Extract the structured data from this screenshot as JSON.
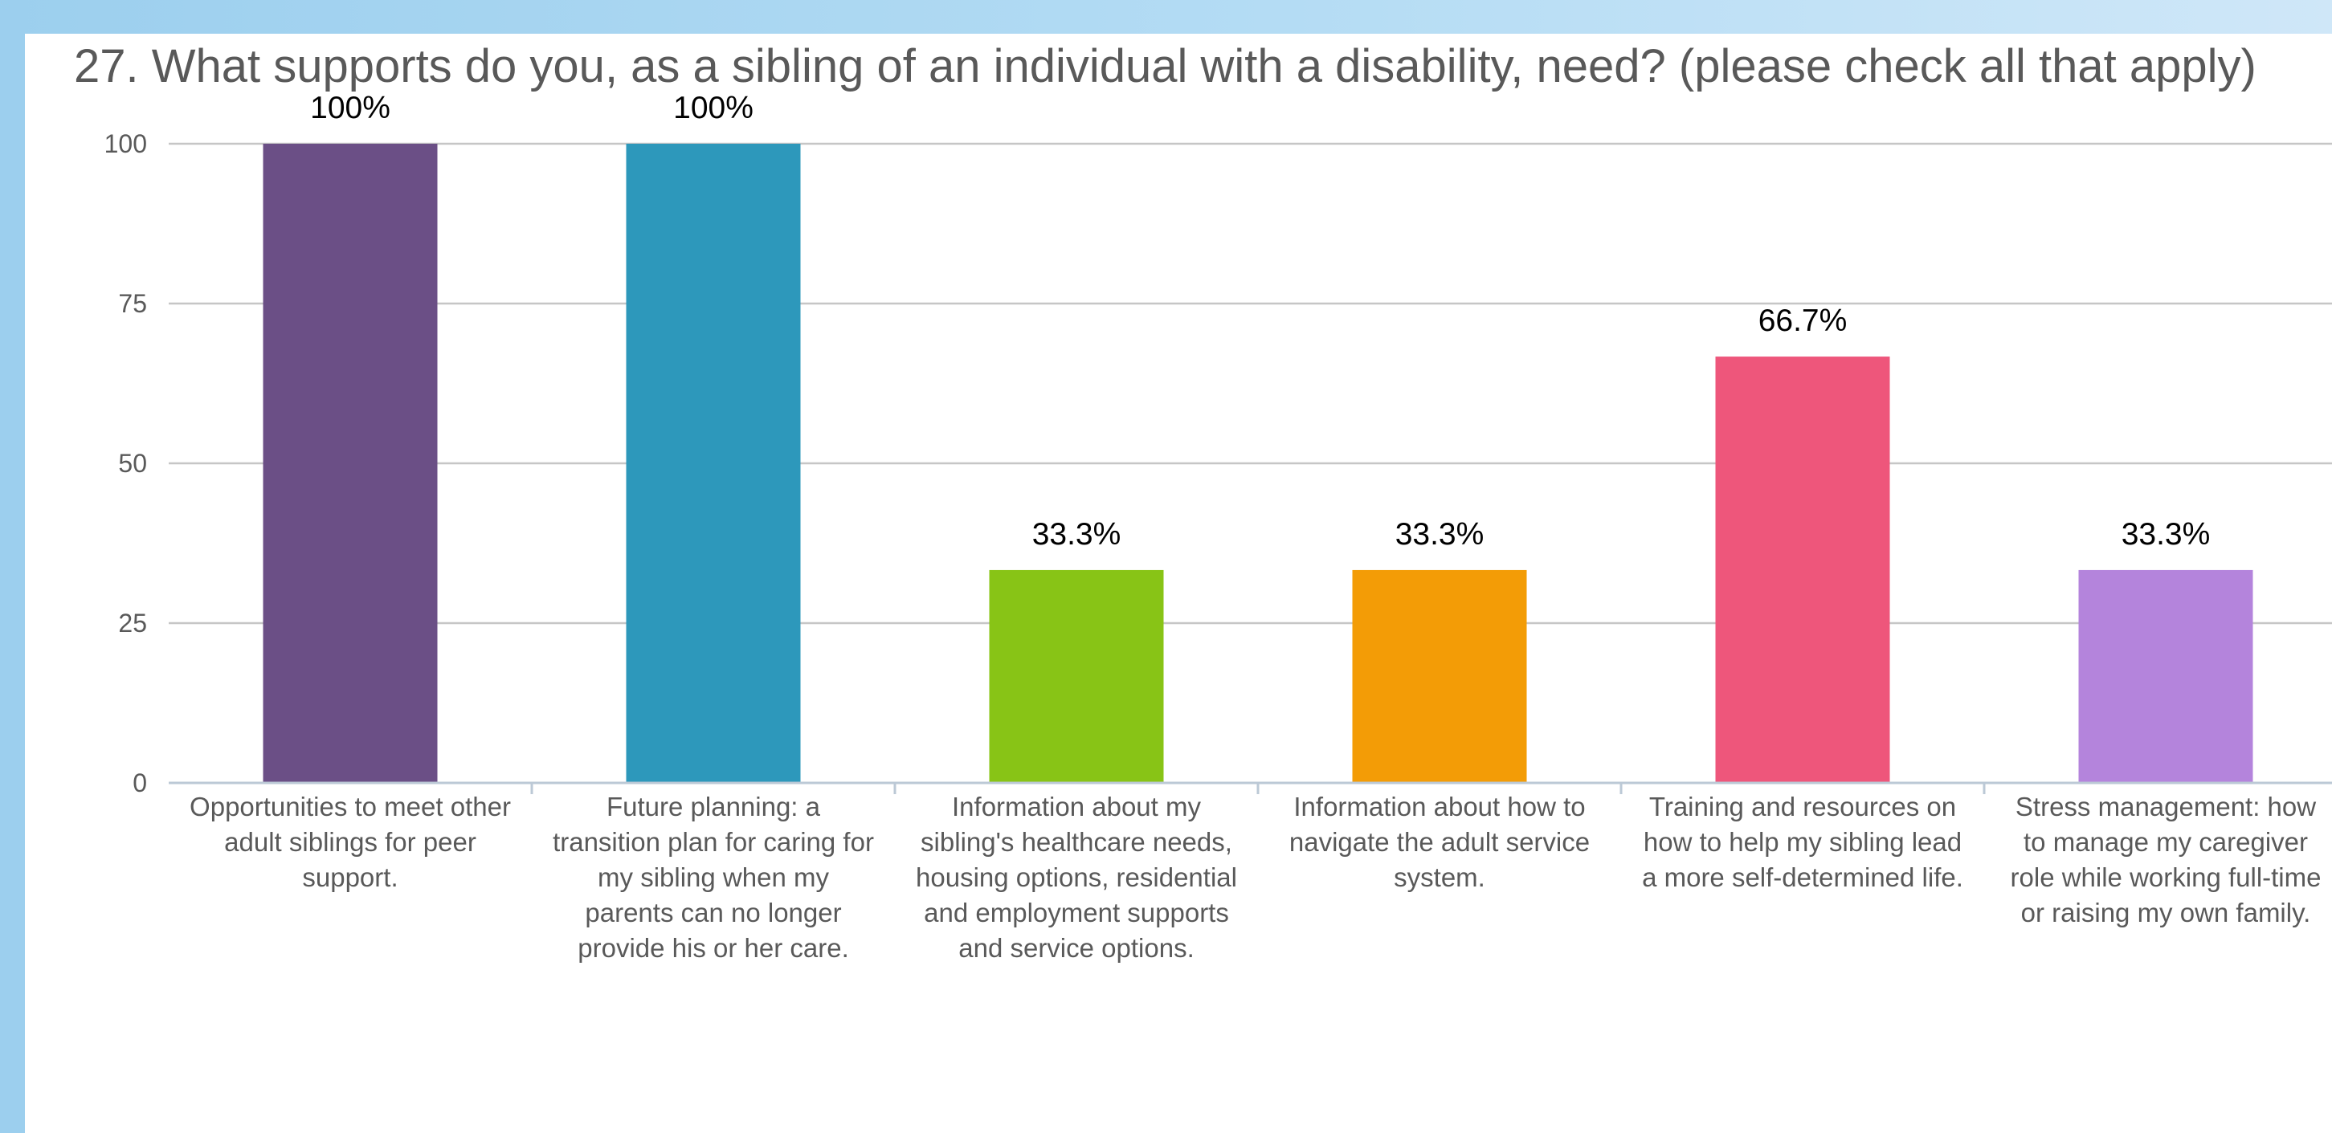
{
  "chart_data": {
    "type": "bar",
    "title": "27. What supports do you, as a sibling of an individual with a disability, need? (please check all that apply)",
    "xlabel": "",
    "ylabel": "",
    "ylim": [
      0,
      100
    ],
    "yticks": [
      0,
      25,
      50,
      75,
      100
    ],
    "grid": true,
    "categories": [
      "Opportunities to meet other adult siblings for peer support.",
      "Future planning: a transition plan for caring for my sibling when my parents can no longer provide his or her care.",
      "Information about my sibling's healthcare needs, housing options, residential and employment supports and service options.",
      "Information about how to navigate the adult service system.",
      "Training and resources on how to help my sibling lead a more self-determined life.",
      "Stress management: how to manage my caregiver role while working full-time or raising my own family."
    ],
    "values": [
      100,
      100,
      33.3,
      33.3,
      66.7,
      33.3
    ],
    "data_labels": [
      "100%",
      "100%",
      "33.3%",
      "33.3%",
      "66.7%",
      "33.3%"
    ],
    "colors": [
      "#6b4f86",
      "#2d98bb",
      "#88c416",
      "#f39c06",
      "#ee567b",
      "#b484dc"
    ]
  }
}
